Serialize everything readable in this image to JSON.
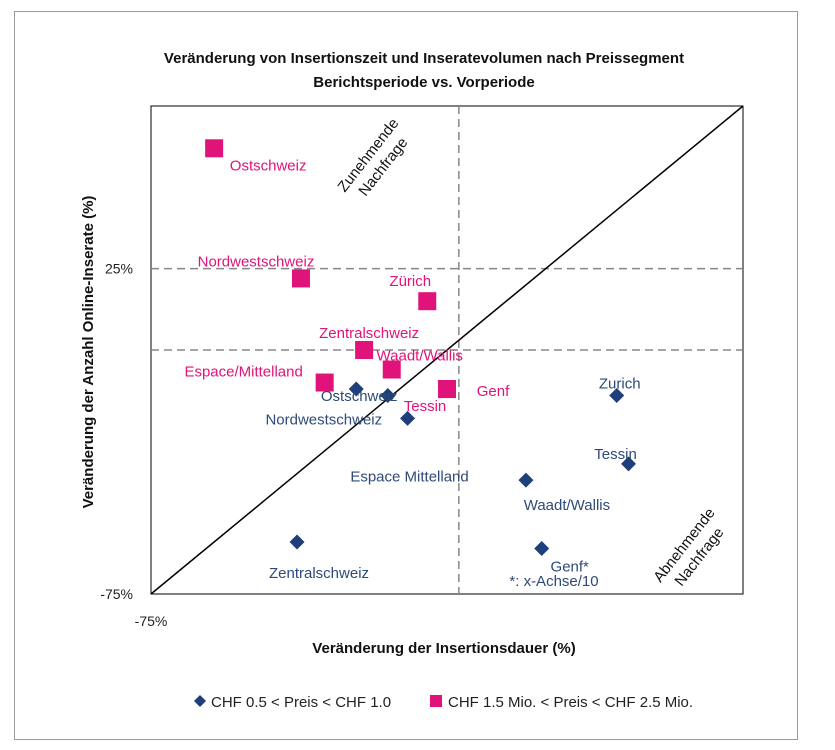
{
  "chart_data": {
    "type": "scatter",
    "title": [
      "Veränderung von Insertionszeit und Inseratevolumen nach Preissegment",
      "Berichtsperiode vs. Vorperiode"
    ],
    "xlabel": "Veränderung der Insertionsdauer (%)",
    "ylabel": "Veränderung der Anzahl Online-Inserate (%)",
    "x_tick_labels": [
      "-75%"
    ],
    "y_tick_labels": [
      "25%",
      "-75%"
    ],
    "xlim": [
      -75,
      75
    ],
    "ylim": [
      -75,
      75
    ],
    "reference_lines": {
      "horizontal_y": [
        25,
        0
      ],
      "vertical_x": [
        3
      ],
      "diagonal": true
    },
    "zone_labels": {
      "top": [
        "Zunehmende",
        "Nachfrage"
      ],
      "bottom": [
        "Abnehmende",
        "Nachfrage"
      ]
    },
    "footnote": "*: x-Achse/10",
    "series": [
      {
        "name": "CHF 0.5 < Preis < CHF 1.0",
        "marker": "diamond",
        "color": "#1f3f7a",
        "points": [
          {
            "label": "Ostschweiz",
            "x": -23,
            "y": -12
          },
          {
            "label": "Nordwestschweiz",
            "x": -15,
            "y": -14
          },
          {
            "label": "Espace Mittelland",
            "x": -10,
            "y": -21
          },
          {
            "label": "Zentralschweiz",
            "x": -38,
            "y": -59
          },
          {
            "label": "Zurich",
            "x": 43,
            "y": -14
          },
          {
            "label": "Tessin",
            "x": 46,
            "y": -35
          },
          {
            "label": "Waadt/Wallis",
            "x": 20,
            "y": -40
          },
          {
            "label": "Genf*",
            "x": 24,
            "y": -61
          }
        ]
      },
      {
        "name": "CHF 1.5 Mio. < Preis < CHF 2.5 Mio.",
        "marker": "square",
        "color": "#e0137a",
        "points": [
          {
            "label": "Ostschweiz",
            "x": -59,
            "y": 62
          },
          {
            "label": "Nordwestschweiz",
            "x": -37,
            "y": 22
          },
          {
            "label": "Zürich",
            "x": -5,
            "y": 15
          },
          {
            "label": "Zentralschweiz",
            "x": -21,
            "y": 0
          },
          {
            "label": "Waadt/Wallis",
            "x": -14,
            "y": -6
          },
          {
            "label": "Espace/Mittelland",
            "x": -31,
            "y": -10
          },
          {
            "label": "Tessin",
            "x": 0,
            "y": -12
          },
          {
            "label": "Genf",
            "x": 0,
            "y": -12
          }
        ]
      }
    ],
    "legend_position": "bottom"
  }
}
